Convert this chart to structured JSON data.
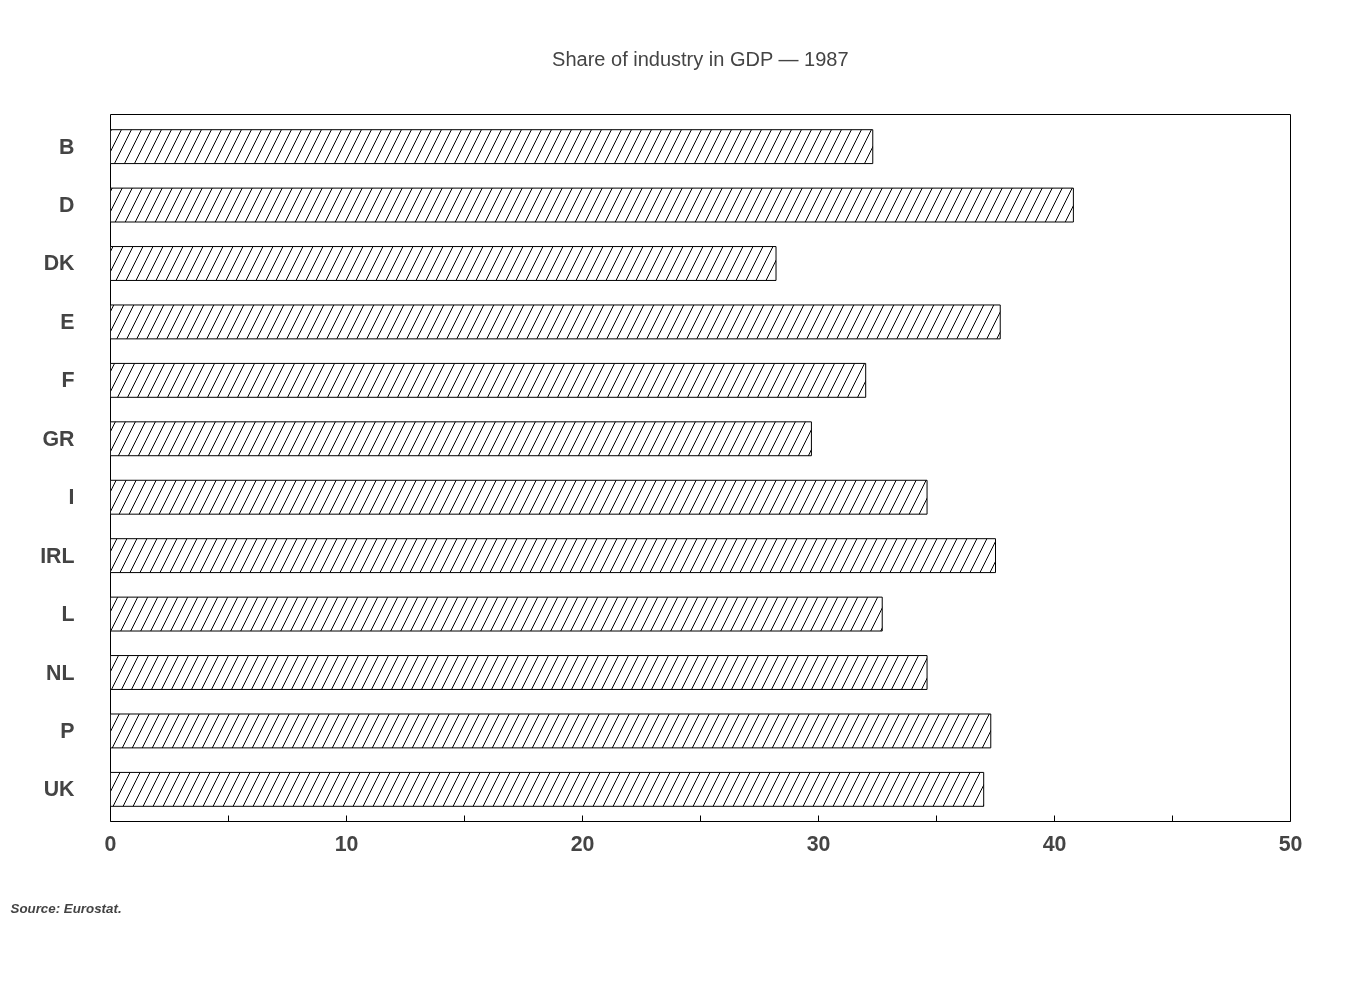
{
  "chart_data": {
    "type": "bar",
    "orientation": "horizontal",
    "title": "Share of industry in GDP — 1987",
    "categories": [
      "B",
      "D",
      "DK",
      "E",
      "F",
      "GR",
      "I",
      "IRL",
      "L",
      "NL",
      "P",
      "UK"
    ],
    "values": [
      32.3,
      40.8,
      28.2,
      37.7,
      32.0,
      29.7,
      34.6,
      37.5,
      32.7,
      34.6,
      37.3,
      37.0
    ],
    "color": "#ffffff",
    "xlim": [
      0,
      50
    ],
    "xticks": [
      0,
      {
        "value": 5,
        "label": null
      },
      10,
      {
        "value": 15,
        "label": null
      },
      20,
      {
        "value": 25,
        "label": null
      },
      30,
      {
        "value": 35,
        "label": null
      },
      40,
      {
        "value": 45,
        "label": null
      },
      50
    ],
    "grid": false,
    "annotations": [
      "Source: Eurostat."
    ]
  }
}
